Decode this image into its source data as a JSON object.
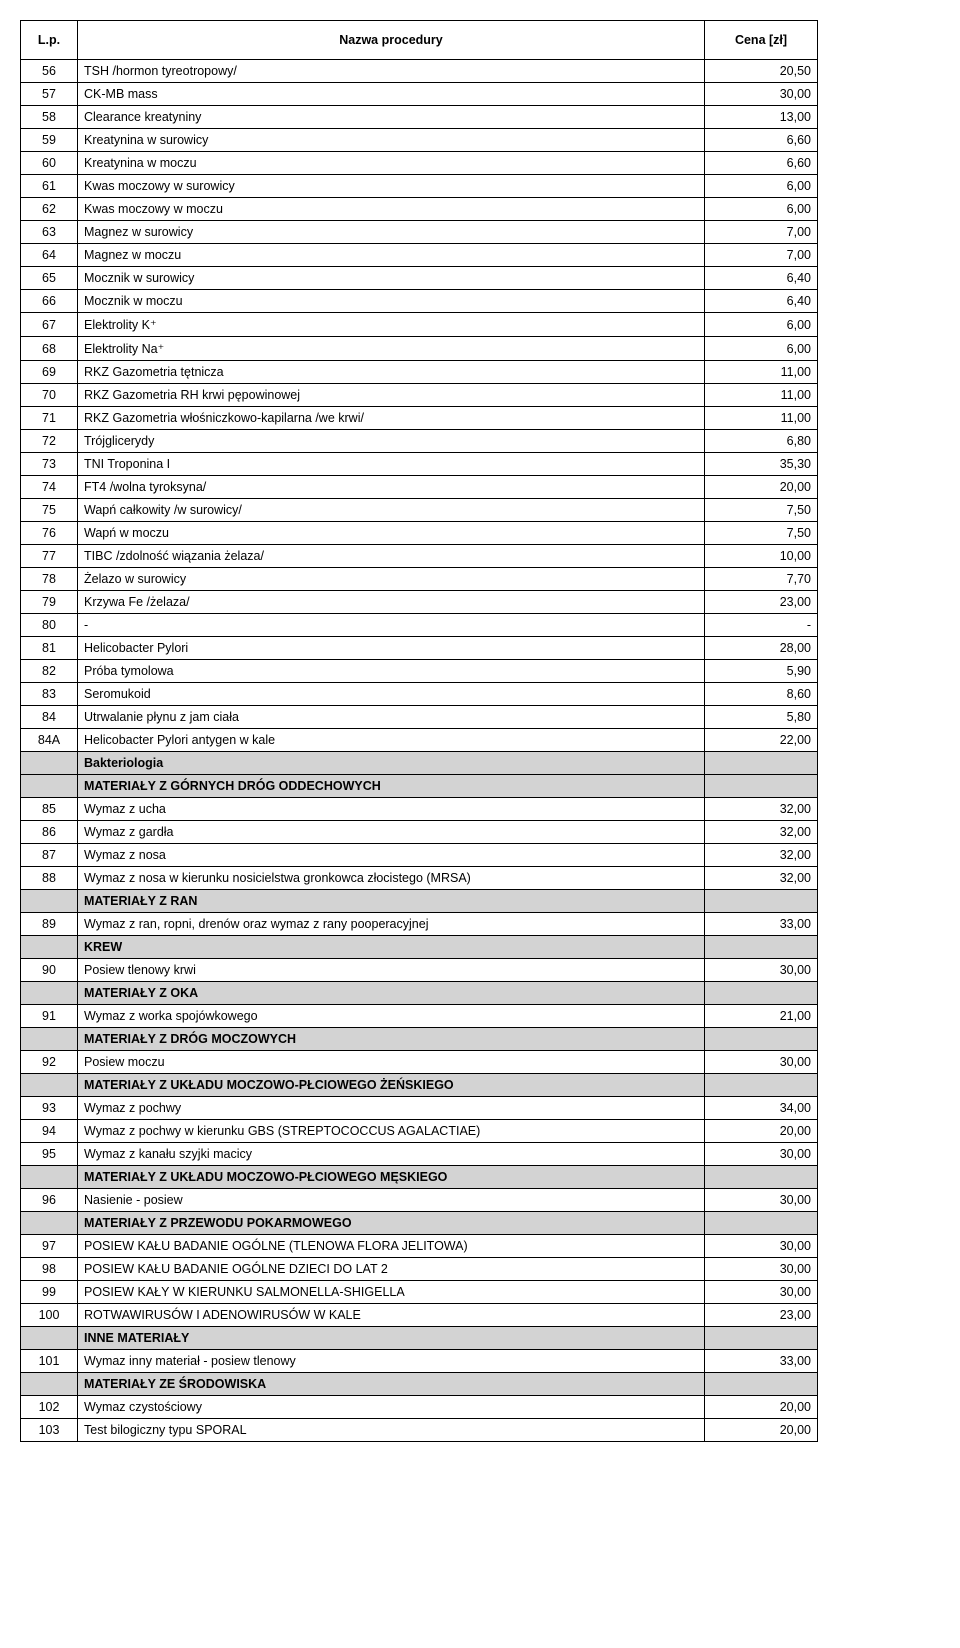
{
  "table": {
    "headers": {
      "lp": "L.p.",
      "name": "Nazwa procedury",
      "price": "Cena [zł]"
    },
    "rows": [
      {
        "lp": "56",
        "name": "TSH /hormon tyreotropowy/",
        "price": "20,50"
      },
      {
        "lp": "57",
        "name": "CK-MB mass",
        "price": "30,00"
      },
      {
        "lp": "58",
        "name": "Clearance kreatyniny",
        "price": "13,00"
      },
      {
        "lp": "59",
        "name": "Kreatynina w surowicy",
        "price": "6,60"
      },
      {
        "lp": "60",
        "name": "Kreatynina w moczu",
        "price": "6,60"
      },
      {
        "lp": "61",
        "name": "Kwas moczowy w surowicy",
        "price": "6,00"
      },
      {
        "lp": "62",
        "name": "Kwas moczowy w moczu",
        "price": "6,00"
      },
      {
        "lp": "63",
        "name": "Magnez w surowicy",
        "price": "7,00"
      },
      {
        "lp": "64",
        "name": "Magnez w moczu",
        "price": "7,00"
      },
      {
        "lp": "65",
        "name": "Mocznik w surowicy",
        "price": "6,40"
      },
      {
        "lp": "66",
        "name": "Mocznik w moczu",
        "price": "6,40"
      },
      {
        "lp": "67",
        "name": "Elektrolity K⁺",
        "price": "6,00"
      },
      {
        "lp": "68",
        "name": "Elektrolity Na⁺",
        "price": "6,00"
      },
      {
        "lp": "69",
        "name": "RKZ Gazometria tętnicza",
        "price": "11,00"
      },
      {
        "lp": "70",
        "name": "RKZ Gazometria RH krwi pępowinowej",
        "price": "11,00"
      },
      {
        "lp": "71",
        "name": "RKZ Gazometria włośniczkowo-kapilarna /we krwi/",
        "price": "11,00"
      },
      {
        "lp": "72",
        "name": "Trójglicerydy",
        "price": "6,80"
      },
      {
        "lp": "73",
        "name": "TNI Troponina I",
        "price": "35,30"
      },
      {
        "lp": "74",
        "name": "FT4 /wolna tyroksyna/",
        "price": "20,00"
      },
      {
        "lp": "75",
        "name": "Wapń całkowity /w surowicy/",
        "price": "7,50"
      },
      {
        "lp": "76",
        "name": "Wapń w moczu",
        "price": "7,50"
      },
      {
        "lp": "77",
        "name": "TIBC /zdolność wiązania żelaza/",
        "price": "10,00"
      },
      {
        "lp": "78",
        "name": "Żelazo w surowicy",
        "price": "7,70"
      },
      {
        "lp": "79",
        "name": "Krzywa Fe /żelaza/",
        "price": "23,00"
      },
      {
        "lp": "80",
        "name": "   -",
        "price": "-"
      },
      {
        "lp": "81",
        "name": "Helicobacter Pylori",
        "price": "28,00"
      },
      {
        "lp": "82",
        "name": "Próba tymolowa",
        "price": "5,90"
      },
      {
        "lp": "83",
        "name": "Seromukoid",
        "price": "8,60"
      },
      {
        "lp": "84",
        "name": "Utrwalanie płynu z jam ciała",
        "price": "5,80"
      },
      {
        "lp": "84A",
        "name": "Helicobacter Pylori antygen w kale",
        "price": "22,00"
      },
      {
        "section": true,
        "name": "Bakteriologia"
      },
      {
        "section": true,
        "name": "MATERIAŁY Z GÓRNYCH DRÓG ODDECHOWYCH"
      },
      {
        "lp": "85",
        "name": "Wymaz z ucha",
        "price": "32,00"
      },
      {
        "lp": "86",
        "name": "Wymaz z gardła",
        "price": "32,00"
      },
      {
        "lp": "87",
        "name": "Wymaz z nosa",
        "price": "32,00"
      },
      {
        "lp": "88",
        "name": "Wymaz z nosa w kierunku nosicielstwa gronkowca złocistego (MRSA)",
        "price": "32,00"
      },
      {
        "section": true,
        "name": "MATERIAŁY Z RAN"
      },
      {
        "lp": "89",
        "name": "Wymaz z ran, ropni, drenów oraz wymaz z rany pooperacyjnej",
        "price": "33,00"
      },
      {
        "section": true,
        "name": "KREW"
      },
      {
        "lp": "90",
        "name": "Posiew tlenowy krwi",
        "price": "30,00"
      },
      {
        "section": true,
        "name": "MATERIAŁY Z OKA"
      },
      {
        "lp": "91",
        "name": "Wymaz z worka spojówkowego",
        "price": "21,00"
      },
      {
        "section": true,
        "name": "MATERIAŁY Z DRÓG MOCZOWYCH"
      },
      {
        "lp": "92",
        "name": "Posiew moczu",
        "price": "30,00"
      },
      {
        "section": true,
        "name": "MATERIAŁY Z UKŁADU MOCZOWO-PŁCIOWEGO ŻEŃSKIEGO"
      },
      {
        "lp": "93",
        "name": "Wymaz z pochwy",
        "price": "34,00"
      },
      {
        "lp": "94",
        "name": "Wymaz z pochwy w kierunku GBS (STREPTOCOCCUS AGALACTIAE)",
        "price": "20,00"
      },
      {
        "lp": "95",
        "name": "Wymaz z kanału szyjki macicy",
        "price": "30,00"
      },
      {
        "section": true,
        "name": "MATERIAŁY Z UKŁADU MOCZOWO-PŁCIOWEGO MĘSKIEGO"
      },
      {
        "lp": "96",
        "name": "Nasienie - posiew",
        "price": "30,00"
      },
      {
        "section": true,
        "name": "MATERIAŁY Z PRZEWODU POKARMOWEGO"
      },
      {
        "lp": "97",
        "name": "POSIEW KAŁU BADANIE OGÓLNE (TLENOWA FLORA JELITOWA)",
        "price": "30,00"
      },
      {
        "lp": "98",
        "name": "POSIEW KAŁU BADANIE OGÓLNE DZIECI DO LAT 2",
        "price": "30,00"
      },
      {
        "lp": "99",
        "name": "POSIEW KAŁY W KIERUNKU SALMONELLA-SHIGELLA",
        "price": "30,00"
      },
      {
        "lp": "100",
        "name": "ROTWAWIRUSÓW I ADENOWIRUSÓW W KALE",
        "price": "23,00"
      },
      {
        "section": true,
        "name": "INNE MATERIAŁY"
      },
      {
        "lp": "101",
        "name": "Wymaz inny materiał - posiew tlenowy",
        "price": "33,00"
      },
      {
        "section": true,
        "name": "MATERIAŁY ZE ŚRODOWISKA"
      },
      {
        "lp": "102",
        "name": "Wymaz czystościowy",
        "price": "20,00"
      },
      {
        "lp": "103",
        "name": "Test bilogiczny typu SPORAL",
        "price": "20,00"
      }
    ]
  }
}
